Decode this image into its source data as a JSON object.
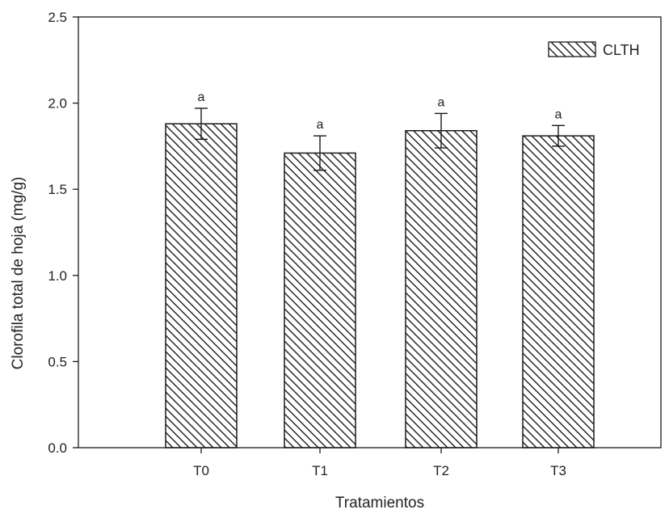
{
  "chart_data": {
    "type": "bar",
    "title": "",
    "xlabel": "Tratamientos",
    "ylabel": "Clorofila total de hoja (mg/g)",
    "categories": [
      "T0",
      "T1",
      "T2",
      "T3"
    ],
    "series": [
      {
        "name": "CLTH",
        "values": [
          1.88,
          1.71,
          1.84,
          1.81
        ],
        "error": [
          0.09,
          0.1,
          0.1,
          0.06
        ],
        "annotations": [
          "a",
          "a",
          "a",
          "a"
        ]
      }
    ],
    "ylim": [
      0,
      2.5
    ],
    "yticks": [
      "0.0",
      "0.5",
      "1.0",
      "1.5",
      "2.0",
      "2.5"
    ],
    "grid": false,
    "legend_position": "top-right",
    "bar_fill": "diagonal-hatch",
    "colors": {
      "stroke": "#1a1a1a",
      "hatch": "#1a1a1a",
      "background": "#ffffff"
    }
  }
}
